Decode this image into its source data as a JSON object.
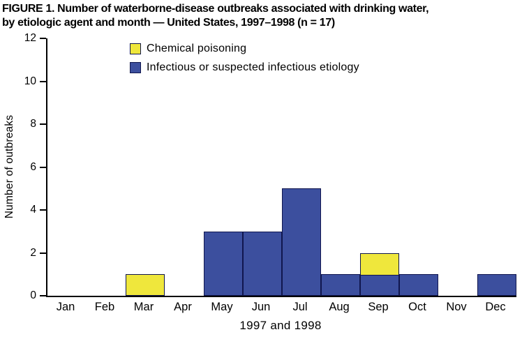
{
  "title": {
    "line1": "FIGURE 1.  Number of waterborne-disease outbreaks associated with drinking water,",
    "line2": "by etiologic agent and month — United States, 1997–1998 (n = 17)"
  },
  "legend": [
    {
      "label": "Chemical poisoning",
      "color": "#efe73c"
    },
    {
      "label": "Infectious or suspected infectious etiology",
      "color": "#3c4f9e"
    }
  ],
  "chart_data": {
    "type": "bar",
    "stacked": true,
    "title": "Number of waterborne-disease outbreaks associated with drinking water, by etiologic agent and month — United States, 1997–1998 (n = 17)",
    "categories": [
      "Jan",
      "Feb",
      "Mar",
      "Apr",
      "May",
      "Jun",
      "Jul",
      "Aug",
      "Sep",
      "Oct",
      "Nov",
      "Dec"
    ],
    "series": [
      {
        "name": "Infectious or suspected infectious etiology",
        "color": "#3c4f9e",
        "values": [
          0,
          0,
          0,
          0,
          3,
          3,
          5,
          1,
          1,
          1,
          0,
          1
        ]
      },
      {
        "name": "Chemical poisoning",
        "color": "#efe73c",
        "values": [
          0,
          0,
          1,
          0,
          0,
          0,
          0,
          0,
          1,
          0,
          0,
          0
        ]
      }
    ],
    "xlabel": "1997 and 1998",
    "ylabel": "Number of outbreaks",
    "ylim": [
      0,
      12
    ],
    "yticks": [
      0,
      2,
      4,
      6,
      8,
      10,
      12
    ],
    "grid": false,
    "legend_position": "top-inside",
    "total_n": 17
  },
  "colors": {
    "bar_border": "#10164e",
    "axis": "#000000",
    "chemical": "#efe73c",
    "infectious": "#3c4f9e"
  }
}
